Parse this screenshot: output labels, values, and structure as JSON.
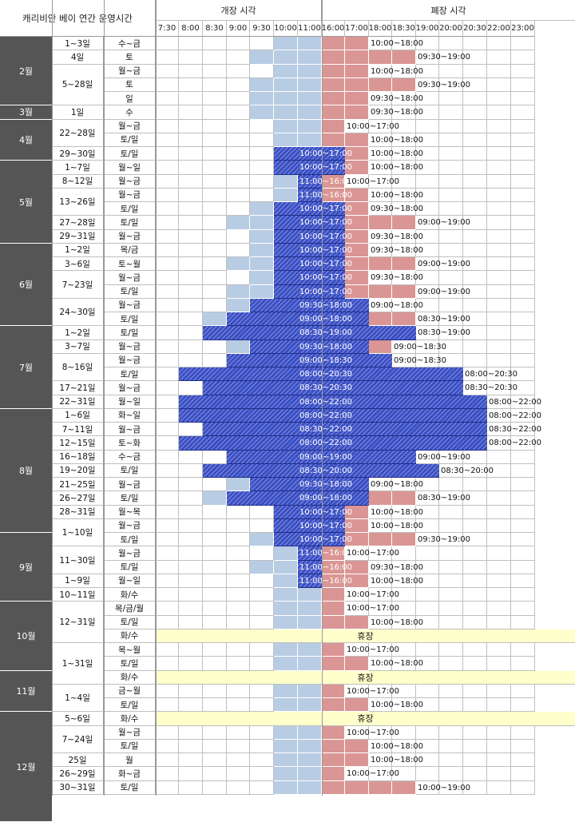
{
  "title": "캐리비안 베이 연간 운영시간",
  "open_header": "개장 시각",
  "close_header": "폐장 시각",
  "time_slots": [
    "7:30",
    "8:00",
    "8:30",
    "9:00",
    "9:30",
    "10:00",
    "11:00",
    "16:00",
    "17:00",
    "18:00",
    "18:30",
    "19:00",
    "20:00",
    "20:30",
    "22:00",
    "23:00"
  ],
  "closed_label": "휴장",
  "colors": {
    "light": "#b8cce4",
    "pink": "#da9694",
    "dark": "#3a4fc4",
    "closed": "#ffffcc",
    "month_bg": "#555555"
  },
  "months": [
    {
      "label": "2월",
      "rows": [
        0,
        4
      ]
    },
    {
      "label": "3월",
      "rows": [
        5,
        5
      ]
    },
    {
      "label": "4월",
      "rows": [
        6,
        8
      ]
    },
    {
      "label": "5월",
      "rows": [
        9,
        14
      ]
    },
    {
      "label": "6월",
      "rows": [
        15,
        20
      ]
    },
    {
      "label": "7월",
      "rows": [
        21,
        26
      ]
    },
    {
      "label": "8월",
      "rows": [
        27,
        35
      ]
    },
    {
      "label": "9월",
      "rows": [
        36,
        40
      ]
    },
    {
      "label": "10월",
      "rows": [
        41,
        45
      ]
    },
    {
      "label": "11월",
      "rows": [
        46,
        48
      ]
    },
    {
      "label": "12월",
      "rows": [
        49,
        56
      ]
    }
  ],
  "date_groups": [
    {
      "label": "1~3일",
      "rows": [
        0,
        0
      ]
    },
    {
      "label": "4일",
      "rows": [
        1,
        1
      ]
    },
    {
      "label": "5~28일",
      "rows": [
        2,
        4
      ]
    },
    {
      "label": "1일",
      "rows": [
        5,
        5
      ]
    },
    {
      "label": "22~28일",
      "rows": [
        6,
        7
      ]
    },
    {
      "label": "29~30일",
      "rows": [
        8,
        8
      ]
    },
    {
      "label": "1~7일",
      "rows": [
        9,
        9
      ]
    },
    {
      "label": "8~12일",
      "rows": [
        10,
        10
      ]
    },
    {
      "label": "13~26일",
      "rows": [
        11,
        12
      ]
    },
    {
      "label": "27~28일",
      "rows": [
        13,
        13
      ]
    },
    {
      "label": "29~31일",
      "rows": [
        14,
        14
      ]
    },
    {
      "label": "1~2일",
      "rows": [
        15,
        15
      ]
    },
    {
      "label": "3~6일",
      "rows": [
        16,
        16
      ]
    },
    {
      "label": "7~23일",
      "rows": [
        17,
        18
      ]
    },
    {
      "label": "24~30일",
      "rows": [
        19,
        20
      ]
    },
    {
      "label": "1~2일",
      "rows": [
        21,
        21
      ]
    },
    {
      "label": "3~7일",
      "rows": [
        22,
        22
      ]
    },
    {
      "label": "8~16일",
      "rows": [
        23,
        24
      ]
    },
    {
      "label": "17~21일",
      "rows": [
        25,
        25
      ]
    },
    {
      "label": "22~31일",
      "rows": [
        26,
        26
      ]
    },
    {
      "label": "1~6일",
      "rows": [
        27,
        27
      ]
    },
    {
      "label": "7~11일",
      "rows": [
        28,
        28
      ]
    },
    {
      "label": "12~15일",
      "rows": [
        29,
        29
      ]
    },
    {
      "label": "16~18일",
      "rows": [
        30,
        30
      ]
    },
    {
      "label": "19~20일",
      "rows": [
        31,
        31
      ]
    },
    {
      "label": "21~25일",
      "rows": [
        32,
        32
      ]
    },
    {
      "label": "26~27일",
      "rows": [
        33,
        33
      ]
    },
    {
      "label": "28~31일",
      "rows": [
        34,
        34
      ]
    },
    {
      "label": "1~10일",
      "rows": [
        35,
        36
      ]
    },
    {
      "label": "11~30일",
      "rows": [
        37,
        38
      ]
    },
    {
      "label": "1~9일",
      "rows": [
        39,
        39
      ]
    },
    {
      "label": "10~11일",
      "rows": [
        40,
        40
      ]
    },
    {
      "label": "12~31일",
      "rows": [
        41,
        43
      ]
    },
    {
      "label": "1~31일",
      "rows": [
        44,
        46
      ]
    },
    {
      "label": "1~4일",
      "rows": [
        47,
        48
      ]
    },
    {
      "label": "5~6일",
      "rows": [
        49,
        49
      ]
    },
    {
      "label": "7~24일",
      "rows": [
        50,
        51
      ]
    },
    {
      "label": "25일",
      "rows": [
        52,
        52
      ]
    },
    {
      "label": "26~29일",
      "rows": [
        53,
        53
      ]
    },
    {
      "label": "30~31일",
      "rows": [
        54,
        54
      ]
    }
  ],
  "rows": [
    {
      "day": "수~금",
      "open": "10:00",
      "close": "18:00",
      "label": "10:00~18:00",
      "dark": false
    },
    {
      "day": "토",
      "open": "9:30",
      "close": "19:00",
      "label": "09:30~19:00",
      "dark": false
    },
    {
      "day": "월~금",
      "open": "10:00",
      "close": "18:00",
      "label": "10:00~18:00",
      "dark": false
    },
    {
      "day": "토",
      "open": "9:30",
      "close": "19:00",
      "label": "09:30~19:00",
      "dark": false
    },
    {
      "day": "일",
      "open": "9:30",
      "close": "18:00",
      "label": "09:30~18:00",
      "dark": false
    },
    {
      "day": "수",
      "open": "9:30",
      "close": "18:00",
      "label": "09:30~18:00",
      "dark": false
    },
    {
      "day": "월~금",
      "open": "10:00",
      "close": "17:00",
      "label": "10:00~17:00",
      "dark": false
    },
    {
      "day": "토/일",
      "open": "10:00",
      "close": "18:00",
      "label": "10:00~18:00",
      "dark": false
    },
    {
      "day": "토/일",
      "open": "10:00",
      "close": "18:00",
      "label": "10:00~18:00",
      "dark": false,
      "darkRange": [
        "10:00",
        "17:00"
      ],
      "darkLabel": "10:00~17:00"
    },
    {
      "day": "월~일",
      "open": "10:00",
      "close": "18:00",
      "label": "10:00~18:00",
      "dark": false,
      "darkRange": [
        "10:00",
        "17:00"
      ],
      "darkLabel": "10:00~17:00"
    },
    {
      "day": "월~금",
      "open": "10:00",
      "close": "17:00",
      "label": "10:00~17:00",
      "dark": false,
      "darkRange": [
        "11:00",
        "16:00"
      ],
      "darkLabel": "11:00~16:00"
    },
    {
      "day": "월~금",
      "open": "10:00",
      "close": "18:00",
      "label": "10:00~18:00",
      "dark": false,
      "darkRange": [
        "11:00",
        "16:00"
      ],
      "darkLabel": "11:00~16:00"
    },
    {
      "day": "토/일",
      "open": "9:30",
      "close": "18:00",
      "label": "09:30~18:00",
      "dark": false,
      "darkRange": [
        "10:00",
        "17:00"
      ],
      "darkLabel": "10:00~17:00"
    },
    {
      "day": "토/일",
      "open": "9:00",
      "close": "19:00",
      "label": "09:00~19:00",
      "dark": false,
      "darkRange": [
        "10:00",
        "17:00"
      ],
      "darkLabel": "10:00~17:00"
    },
    {
      "day": "월~금",
      "open": "9:30",
      "close": "18:00",
      "label": "09:30~18:00",
      "dark": false,
      "darkRange": [
        "10:00",
        "17:00"
      ],
      "darkLabel": "10:00~17:00"
    },
    {
      "day": "목/금",
      "open": "9:30",
      "close": "18:00",
      "label": "09:30~18:00",
      "dark": false,
      "darkRange": [
        "10:00",
        "17:00"
      ],
      "darkLabel": "10:00~17:00"
    },
    {
      "day": "토~월",
      "open": "9:00",
      "close": "19:00",
      "label": "09:00~19:00",
      "dark": false,
      "darkRange": [
        "10:00",
        "17:00"
      ],
      "darkLabel": "10:00~17:00"
    },
    {
      "day": "월~금",
      "open": "9:30",
      "close": "18:00",
      "label": "09:30~18:00",
      "dark": false,
      "darkRange": [
        "10:00",
        "17:00"
      ],
      "darkLabel": "10:00~17:00"
    },
    {
      "day": "토/일",
      "open": "9:00",
      "close": "19:00",
      "label": "09:00~19:00",
      "dark": false,
      "darkRange": [
        "10:00",
        "17:00"
      ],
      "darkLabel": "10:00~17:00"
    },
    {
      "day": "월~금",
      "open": "9:00",
      "close": "18:00",
      "label": "09:00~18:00",
      "dark": false,
      "darkRange": [
        "9:30",
        "18:00"
      ],
      "darkLabel": "09:30~18:00"
    },
    {
      "day": "토/일",
      "open": "8:30",
      "close": "19:00",
      "label": "08:30~19:00",
      "dark": false,
      "darkRange": [
        "9:00",
        "18:00"
      ],
      "darkLabel": "09:00~18:00"
    },
    {
      "day": "토/일",
      "open": "8:30",
      "close": "19:00",
      "label": "08:30~19:00",
      "dark": false,
      "darkRange": [
        "8:30",
        "19:00"
      ],
      "darkLabel": "08:30~19:00"
    },
    {
      "day": "월~금",
      "open": "9:00",
      "close": "18:30",
      "label": "09:00~18:30",
      "dark": false,
      "darkRange": [
        "9:30",
        "18:00"
      ],
      "darkLabel": "09:30~18:00"
    },
    {
      "day": "월~금",
      "open": "9:00",
      "close": "18:30",
      "label": "09:00~18:30",
      "dark": false,
      "darkRange": [
        "9:00",
        "18:30"
      ],
      "darkLabel": "09:00~18:30"
    },
    {
      "day": "토/일",
      "open": "8:00",
      "close": "20:30",
      "label": "08:00~20:30",
      "dark": false,
      "darkRange": [
        "8:00",
        "20:30"
      ],
      "darkLabel": "08:00~20:30"
    },
    {
      "day": "월~금",
      "open": "8:30",
      "close": "20:30",
      "label": "08:30~20:30",
      "dark": false,
      "darkRange": [
        "8:30",
        "20:30"
      ],
      "darkLabel": "08:30~20:30"
    },
    {
      "day": "월~일",
      "open": "8:00",
      "close": "22:00",
      "label": "08:00~22:00",
      "dark": false,
      "darkRange": [
        "8:00",
        "22:00"
      ],
      "darkLabel": "08:00~22:00"
    },
    {
      "day": "화~일",
      "open": "8:00",
      "close": "22:00",
      "label": "08:00~22:00",
      "dark": false,
      "darkRange": [
        "8:00",
        "22:00"
      ],
      "darkLabel": "08:00~22:00"
    },
    {
      "day": "월~금",
      "open": "8:30",
      "close": "22:00",
      "label": "08:30~22:00",
      "dark": false,
      "darkRange": [
        "8:30",
        "22:00"
      ],
      "darkLabel": "08:30~22:00"
    },
    {
      "day": "토~화",
      "open": "8:00",
      "close": "22:00",
      "label": "08:00~22:00",
      "dark": false,
      "darkRange": [
        "8:00",
        "22:00"
      ],
      "darkLabel": "08:00~22:00"
    },
    {
      "day": "수~금",
      "open": "9:00",
      "close": "19:00",
      "label": "09:00~19:00",
      "dark": false,
      "darkRange": [
        "9:00",
        "19:00"
      ],
      "darkLabel": "09:00~19:00"
    },
    {
      "day": "토/일",
      "open": "8:30",
      "close": "20:00",
      "label": "08:30~20:00",
      "dark": false,
      "darkRange": [
        "8:30",
        "20:00"
      ],
      "darkLabel": "08:30~20:00"
    },
    {
      "day": "월~금",
      "open": "9:00",
      "close": "18:00",
      "label": "09:00~18:00",
      "dark": false,
      "darkRange": [
        "9:30",
        "18:00"
      ],
      "darkLabel": "09:30~18:00"
    },
    {
      "day": "토/일",
      "open": "8:30",
      "close": "19:00",
      "label": "08:30~19:00",
      "dark": false,
      "darkRange": [
        "9:00",
        "18:00"
      ],
      "darkLabel": "09:00~18:00"
    },
    {
      "day": "월~목",
      "open": "10:00",
      "close": "18:00",
      "label": "10:00~18:00",
      "dark": false,
      "darkRange": [
        "10:00",
        "17:00"
      ],
      "darkLabel": "10:00~17:00"
    },
    {
      "day": "월~금",
      "open": "10:00",
      "close": "18:00",
      "label": "10:00~18:00",
      "dark": false,
      "darkRange": [
        "10:00",
        "17:00"
      ],
      "darkLabel": "10:00~17:00"
    },
    {
      "day": "토/일",
      "open": "9:30",
      "close": "19:00",
      "label": "09:30~19:00",
      "dark": false,
      "darkRange": [
        "10:00",
        "17:00"
      ],
      "darkLabel": "10:00~17:00"
    },
    {
      "day": "월~금",
      "open": "10:00",
      "close": "17:00",
      "label": "10:00~17:00",
      "dark": false,
      "darkRange": [
        "11:00",
        "16:00"
      ],
      "darkLabel": "11:00~16:00"
    },
    {
      "day": "토/일",
      "open": "9:30",
      "close": "18:00",
      "label": "09:30~18:00",
      "dark": false,
      "darkRange": [
        "11:00",
        "16:00"
      ],
      "darkLabel": "11:00~16:00"
    },
    {
      "day": "월~일",
      "open": "10:00",
      "close": "18:00",
      "label": "10:00~18:00",
      "dark": false,
      "darkRange": [
        "11:00",
        "16:00"
      ],
      "darkLabel": "11:00~16:00"
    },
    {
      "day": "화/수",
      "open": "10:00",
      "close": "17:00",
      "label": "10:00~17:00",
      "dark": false
    },
    {
      "day": "목/금/월",
      "open": "10:00",
      "close": "17:00",
      "label": "10:00~17:00",
      "dark": false
    },
    {
      "day": "토/일",
      "open": "10:00",
      "close": "18:00",
      "label": "10:00~18:00",
      "dark": false
    },
    {
      "day": "화/수",
      "closed": true
    },
    {
      "day": "목~월",
      "open": "10:00",
      "close": "17:00",
      "label": "10:00~17:00",
      "dark": false
    },
    {
      "day": "토/일",
      "open": "10:00",
      "close": "18:00",
      "label": "10:00~18:00",
      "dark": false
    },
    {
      "day": "화/수",
      "closed": true
    },
    {
      "day": "금~월",
      "open": "10:00",
      "close": "17:00",
      "label": "10:00~17:00",
      "dark": false
    },
    {
      "day": "토/일",
      "open": "10:00",
      "close": "18:00",
      "label": "10:00~18:00",
      "dark": false
    },
    {
      "day": "화/수",
      "closed": true
    },
    {
      "day": "월~금",
      "open": "10:00",
      "close": "17:00",
      "label": "10:00~17:00",
      "dark": false
    },
    {
      "day": "토/일",
      "open": "10:00",
      "close": "18:00",
      "label": "10:00~18:00",
      "dark": false
    },
    {
      "day": "월",
      "open": "10:00",
      "close": "18:00",
      "label": "10:00~18:00",
      "dark": false
    },
    {
      "day": "화~금",
      "open": "10:00",
      "close": "17:00",
      "label": "10:00~17:00",
      "dark": false
    },
    {
      "day": "토/일",
      "open": "10:00",
      "close": "19:00",
      "label": "10:00~19:00",
      "dark": false
    }
  ]
}
